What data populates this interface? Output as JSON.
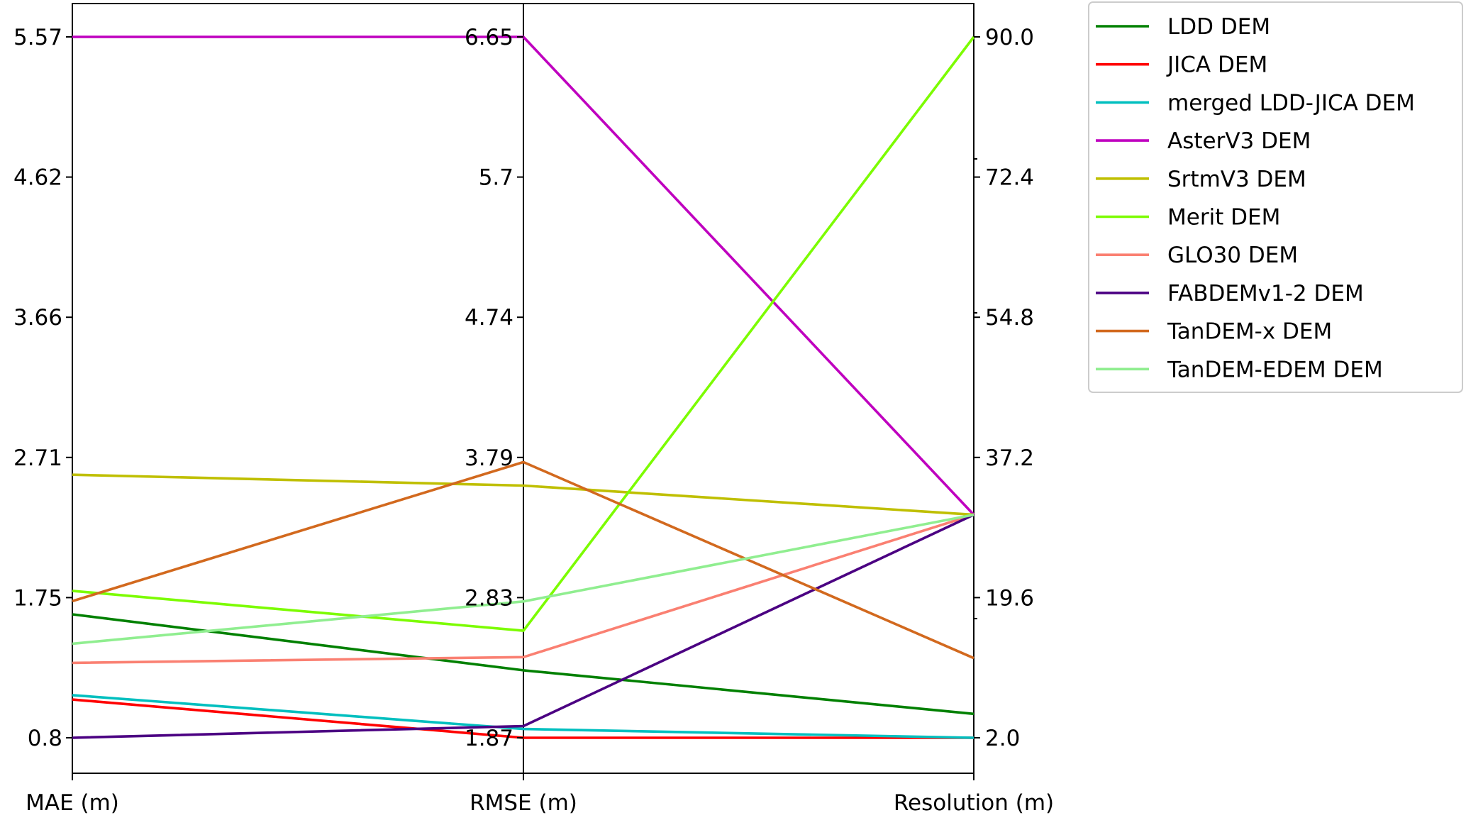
{
  "chart_data": {
    "type": "parallel-coordinates",
    "axes": [
      {
        "label": "MAE (m)",
        "ticks": [
          "5.57",
          "4.62",
          "3.66",
          "2.71",
          "1.75",
          "0.8"
        ],
        "range": [
          0.8,
          5.57
        ],
        "tick_side": "left"
      },
      {
        "label": "RMSE (m)",
        "ticks": [
          "6.65",
          "5.7",
          "4.74",
          "3.79",
          "2.83",
          "1.87"
        ],
        "range": [
          1.87,
          6.65
        ],
        "tick_side": "left"
      },
      {
        "label": "Resolution (m)",
        "ticks": [
          "90.0",
          "72.4",
          "54.8",
          "37.2",
          "19.6",
          "2.0"
        ],
        "range": [
          2.0,
          90.0
        ],
        "tick_side": "right"
      }
    ],
    "series": [
      {
        "name": "LDD DEM",
        "color": "#008000",
        "values": [
          1.64,
          2.33,
          5.0
        ]
      },
      {
        "name": "JICA DEM",
        "color": "#ff0000",
        "values": [
          1.06,
          1.87,
          2.0
        ]
      },
      {
        "name": "merged LDD-JICA DEM",
        "color": "#00bfbf",
        "values": [
          1.09,
          1.93,
          2.0
        ]
      },
      {
        "name": "AsterV3 DEM",
        "color": "#bf00bf",
        "values": [
          5.57,
          6.65,
          30.0
        ]
      },
      {
        "name": "SrtmV3 DEM",
        "color": "#bfbf00",
        "values": [
          2.59,
          3.59,
          30.0
        ]
      },
      {
        "name": "Merit DEM",
        "color": "#7cfc00",
        "values": [
          1.8,
          2.6,
          90.0
        ]
      },
      {
        "name": "GLO30 DEM",
        "color": "#fa8072",
        "values": [
          1.31,
          2.42,
          30.0
        ]
      },
      {
        "name": "FABDEMv1-2 DEM",
        "color": "#4b0082",
        "values": [
          0.8,
          1.95,
          30.0
        ]
      },
      {
        "name": "TanDEM-x DEM",
        "color": "#d2691e",
        "values": [
          1.73,
          3.75,
          12.0
        ]
      },
      {
        "name": "TanDEM-EDEM DEM",
        "color": "#90ee90",
        "values": [
          1.44,
          2.8,
          30.0
        ]
      }
    ],
    "legend_position": "outside-right"
  }
}
